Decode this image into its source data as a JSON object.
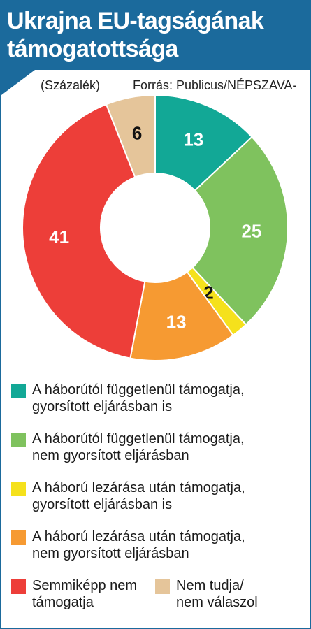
{
  "title": "Ukrajna EU-tagságának támogatottsága",
  "unit_note": "(Százalék)",
  "source": "Forrás: Publicus/NÉPSZAVA-grafika",
  "chart_data": {
    "type": "pie",
    "title": "Ukrajna EU-tagságának támogatottsága",
    "unit": "Százalék",
    "donut": true,
    "start": "12 o'clock, clockwise",
    "slices": [
      {
        "label": "A háborútól függetlenül támogatja, gyorsított eljárásban is",
        "value": 13,
        "color": "#12a896",
        "label_color": "#ffffff"
      },
      {
        "label": "A háborútól függetlenül támogatja, nem gyorsított eljárásban",
        "value": 25,
        "color": "#7fc25e",
        "label_color": "#ffffff"
      },
      {
        "label": "A háború lezárása után támogatja, gyorsított eljárásban is",
        "value": 2,
        "color": "#f5e11c",
        "label_color": "#111111"
      },
      {
        "label": "A háború lezárása után támogatja, nem gyorsított eljárásban",
        "value": 13,
        "color": "#f69a32",
        "label_color": "#ffffff"
      },
      {
        "label": "Semmiképp nem támogatja",
        "value": 41,
        "color": "#ed3e39",
        "label_color": "#ffffff"
      },
      {
        "label": "Nem tudja/ nem válaszol",
        "value": 6,
        "color": "#e5c59a",
        "label_color": "#111111"
      }
    ]
  },
  "legend": [
    {
      "text": "A háborútól függetlenül támogatja,\ngyorsított eljárásban is",
      "color": "#12a896"
    },
    {
      "text": "A háborútól függetlenül támogatja,\nnem gyorsított eljárásban",
      "color": "#7fc25e"
    },
    {
      "text": "A háború lezárása után támogatja,\ngyorsított eljárásban is",
      "color": "#f5e11c"
    },
    {
      "text": "A háború lezárása után támogatja,\nnem gyorsított eljárásban",
      "color": "#f69a32"
    },
    {
      "text": "Semmiképp nem\ntámogatja",
      "color": "#ed3e39"
    },
    {
      "text": "Nem tudja/\nnem válaszol",
      "color": "#e5c59a"
    }
  ]
}
